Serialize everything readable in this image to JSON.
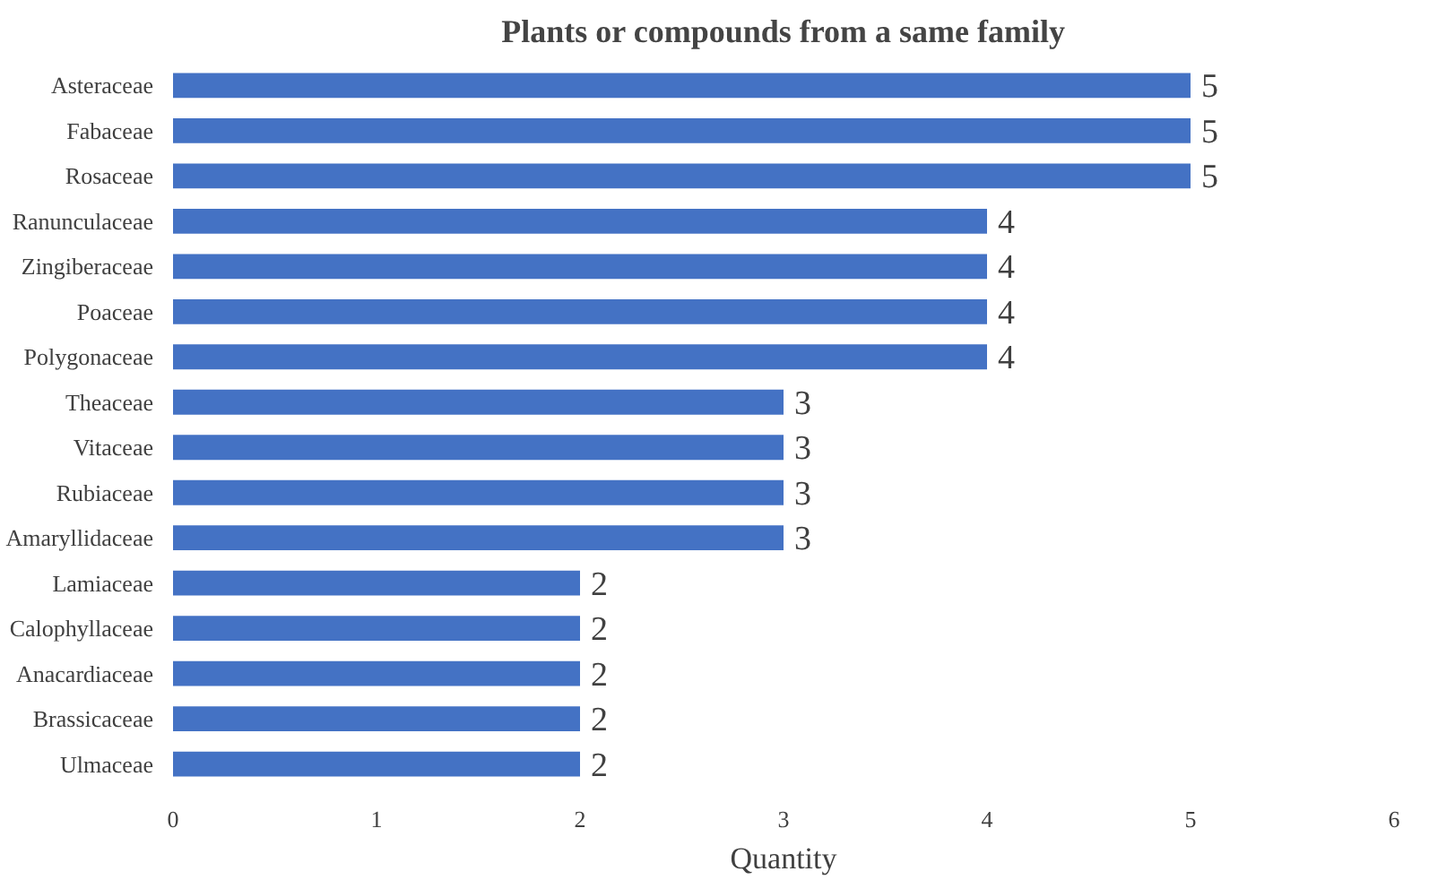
{
  "chart_data": {
    "type": "bar",
    "orientation": "horizontal",
    "title": "Plants or compounds from a same family",
    "xlabel": "Quantity",
    "categories": [
      "Asteraceae",
      "Fabaceae",
      "Rosaceae",
      "Ranunculaceae",
      "Zingiberaceae",
      "Poaceae",
      "Polygonaceae",
      "Theaceae",
      "Vitaceae",
      "Rubiaceae",
      "Amaryllidaceae",
      "Lamiaceae",
      "Calophyllaceae",
      "Anacardiaceae",
      "Brassicaceae",
      "Ulmaceae"
    ],
    "values": [
      5,
      5,
      5,
      4,
      4,
      4,
      4,
      3,
      3,
      3,
      3,
      2,
      2,
      2,
      2,
      2
    ],
    "color": "#4472c4",
    "xlim": [
      0,
      6
    ],
    "xticks": [
      0,
      1,
      2,
      3,
      4,
      5,
      6
    ],
    "grid": false,
    "data_labels": true
  }
}
